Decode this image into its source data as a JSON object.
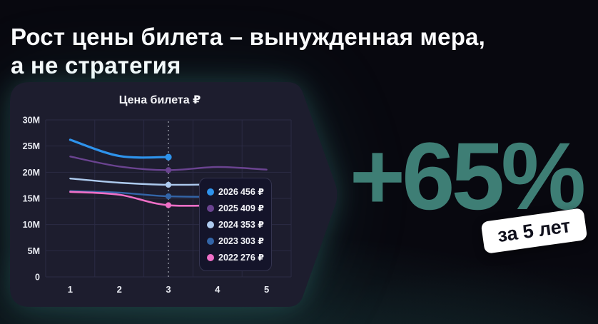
{
  "page": {
    "title_line1": "Рост цены билета – вынужденная мера,",
    "title_line2": "а не стратегия"
  },
  "highlight": {
    "value": "+65%",
    "badge": "за 5 лет",
    "accent_color": "#3E7E75",
    "badge_bg": "#FFFFFF",
    "badge_text_color": "#10101C"
  },
  "panel": {
    "bg_color": "#1D1D2E",
    "glow_color": "#56CDC3",
    "grid_color": "#2B2B44",
    "marker_line_color": "#D8DCE6"
  },
  "chart_data": {
    "type": "line",
    "title": "Цена билета ₽",
    "xlabel": "",
    "ylabel": "",
    "x_ticks": [
      "1",
      "2",
      "3",
      "4",
      "5"
    ],
    "y_ticks": [
      "30M",
      "25M",
      "20M",
      "15M",
      "10M",
      "5M",
      "0"
    ],
    "ylim_m": [
      0,
      30
    ],
    "y_step_m": 5,
    "grid": true,
    "marker_x": 3,
    "legend_position": "inside-right",
    "series": [
      {
        "name": "2026",
        "price": "456 ₽",
        "color": "#2E93EC",
        "width": 3.2,
        "x": [
          1,
          2,
          3
        ],
        "values_m": [
          26.2,
          23.1,
          22.9
        ]
      },
      {
        "name": "2025",
        "price": "409 ₽",
        "color": "#6A4390",
        "width": 2.4,
        "x": [
          1,
          2,
          3,
          4,
          5
        ],
        "values_m": [
          23.0,
          21.1,
          20.4,
          21.0,
          20.5
        ]
      },
      {
        "name": "2024",
        "price": "353 ₽",
        "color": "#AECBEF",
        "width": 2.4,
        "x": [
          1,
          2,
          3,
          4.4
        ],
        "values_m": [
          18.8,
          18.0,
          17.6,
          17.75
        ]
      },
      {
        "name": "2023",
        "price": "303 ₽",
        "color": "#3365A8",
        "width": 2.4,
        "x": [
          1,
          2,
          3,
          4.4
        ],
        "values_m": [
          16.4,
          16.1,
          15.4,
          15.3
        ]
      },
      {
        "name": "2022",
        "price": "276 ₽",
        "color": "#EF6FC7",
        "width": 2.6,
        "x": [
          1,
          2,
          3,
          4.4
        ],
        "values_m": [
          16.25,
          15.7,
          13.7,
          13.8
        ]
      }
    ]
  }
}
